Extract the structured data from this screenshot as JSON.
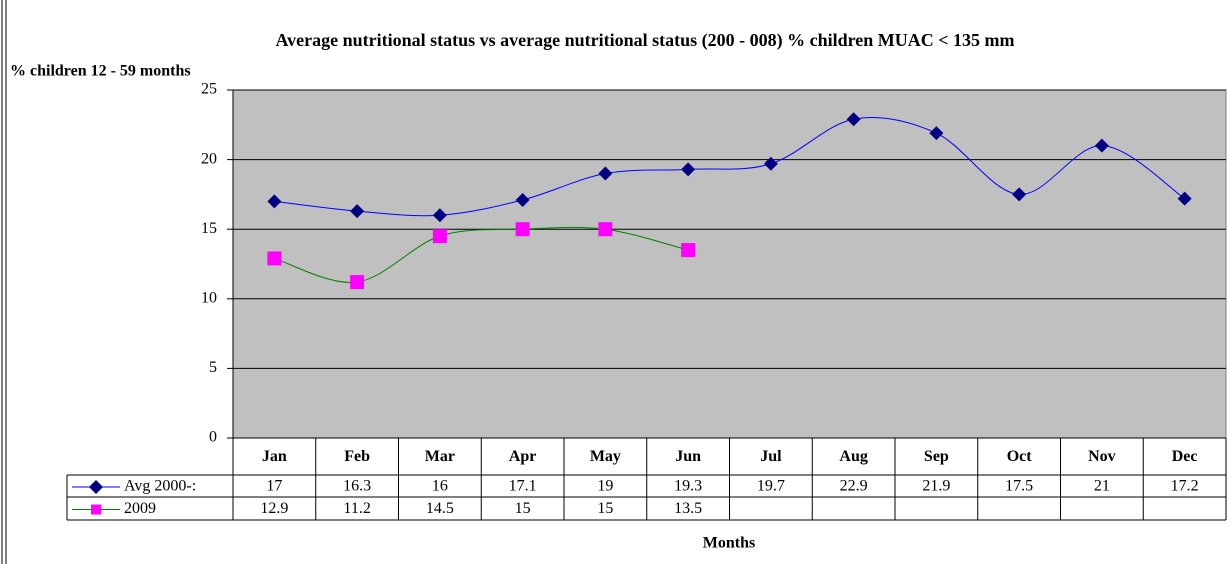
{
  "chart_data": {
    "type": "line",
    "title": "Average nutritional status vs average nutritional status (200 - 008) % children MUAC < 135 mm",
    "ylabel": "% children 12 - 59 months",
    "xlabel": "Months",
    "categories": [
      "Jan",
      "Feb",
      "Mar",
      "Apr",
      "May",
      "Jun",
      "Jul",
      "Aug",
      "Sep",
      "Oct",
      "Nov",
      "Dec"
    ],
    "series": [
      {
        "name": "Avg 2000-:",
        "color": "#000080",
        "line_color": "#0000ff",
        "marker": "diamond",
        "values": [
          17,
          16.3,
          16,
          17.1,
          19,
          19.3,
          19.7,
          22.9,
          21.9,
          17.5,
          21,
          17.2
        ]
      },
      {
        "name": "2009",
        "color": "#ff00ff",
        "line_color": "#008000",
        "marker": "square",
        "values": [
          12.9,
          11.2,
          14.5,
          15,
          15,
          13.5,
          null,
          null,
          null,
          null,
          null,
          null
        ]
      }
    ],
    "ylim": [
      0,
      25
    ],
    "yticks": [
      0,
      5,
      10,
      15,
      20,
      25
    ],
    "grid": true,
    "smooth": true,
    "data_table": true
  }
}
